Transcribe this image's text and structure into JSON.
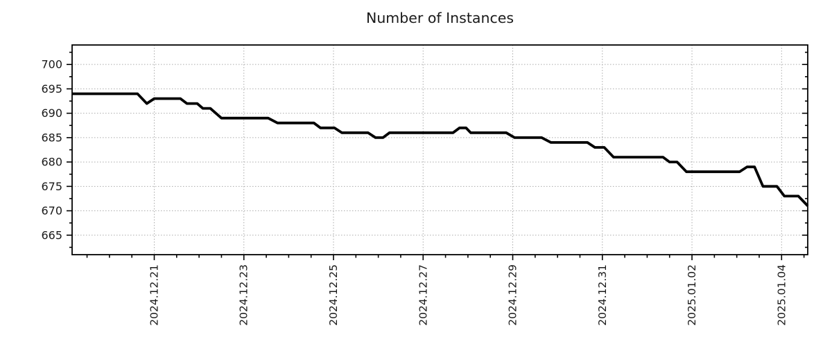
{
  "chart_data": {
    "type": "line",
    "title": "Number of Instances",
    "background": "#ffffff",
    "text_color": "#1a1a1a",
    "line_color": "#000000",
    "line_width": 3.8,
    "grid": {
      "show": true,
      "style": "dotted",
      "color": "#aaaaaa"
    },
    "legend": "none",
    "x_axis": {
      "tick_labels": [
        "2024.12.21",
        "2024.12.23",
        "2024.12.25",
        "2024.12.27",
        "2024.12.29",
        "2024.12.31",
        "2025.01.02",
        "2025.01.04"
      ],
      "tick_dates": [
        "2024-12-21",
        "2024-12-23",
        "2024-12-25",
        "2024-12-27",
        "2024-12-29",
        "2024-12-31",
        "2025-01-02",
        "2025-01-04"
      ],
      "minor_tick_hours": 12,
      "range": [
        "2024-12-19 04:00",
        "2025-01-04 14:00"
      ],
      "label_rotation_deg": 90
    },
    "y_axis": {
      "ticks": [
        665,
        670,
        675,
        680,
        685,
        690,
        695,
        700
      ],
      "minor_step": 2.5,
      "range": [
        661,
        704
      ]
    },
    "series": [
      {
        "name": "instances",
        "points": [
          [
            "2024-12-19 04:00",
            694
          ],
          [
            "2024-12-20 15:00",
            694
          ],
          [
            "2024-12-20 20:00",
            692
          ],
          [
            "2024-12-21 00:00",
            693
          ],
          [
            "2024-12-21 14:00",
            693
          ],
          [
            "2024-12-21 17:30",
            692
          ],
          [
            "2024-12-21 23:00",
            692
          ],
          [
            "2024-12-22 02:00",
            691
          ],
          [
            "2024-12-22 06:00",
            691
          ],
          [
            "2024-12-22 12:00",
            689
          ],
          [
            "2024-12-23 13:00",
            689
          ],
          [
            "2024-12-23 18:00",
            688
          ],
          [
            "2024-12-24 13:30",
            688
          ],
          [
            "2024-12-24 17:00",
            687
          ],
          [
            "2024-12-25 00:30",
            687
          ],
          [
            "2024-12-25 04:30",
            686
          ],
          [
            "2024-12-25 18:30",
            686
          ],
          [
            "2024-12-25 22:30",
            685
          ],
          [
            "2024-12-26 02:30",
            685
          ],
          [
            "2024-12-26 06:00",
            686
          ],
          [
            "2024-12-27 16:00",
            686
          ],
          [
            "2024-12-27 19:30",
            687
          ],
          [
            "2024-12-27 23:00",
            687
          ],
          [
            "2024-12-28 01:30",
            686
          ],
          [
            "2024-12-28 20:30",
            686
          ],
          [
            "2024-12-29 01:00",
            685
          ],
          [
            "2024-12-29 15:30",
            685
          ],
          [
            "2024-12-29 20:30",
            684
          ],
          [
            "2024-12-30 16:00",
            684
          ],
          [
            "2024-12-30 20:00",
            683
          ],
          [
            "2024-12-31 01:00",
            683
          ],
          [
            "2024-12-31 06:00",
            681
          ],
          [
            "2025-01-01 08:30",
            681
          ],
          [
            "2025-01-01 12:00",
            680
          ],
          [
            "2025-01-01 16:00",
            680
          ],
          [
            "2025-01-01 21:00",
            678
          ],
          [
            "2025-01-03 01:30",
            678
          ],
          [
            "2025-01-03 05:30",
            679
          ],
          [
            "2025-01-03 09:30",
            679
          ],
          [
            "2025-01-03 14:00",
            675
          ],
          [
            "2025-01-03 21:30",
            675
          ],
          [
            "2025-01-04 01:30",
            673
          ],
          [
            "2025-01-04 09:00",
            673
          ],
          [
            "2025-01-04 14:00",
            671
          ]
        ]
      }
    ]
  }
}
